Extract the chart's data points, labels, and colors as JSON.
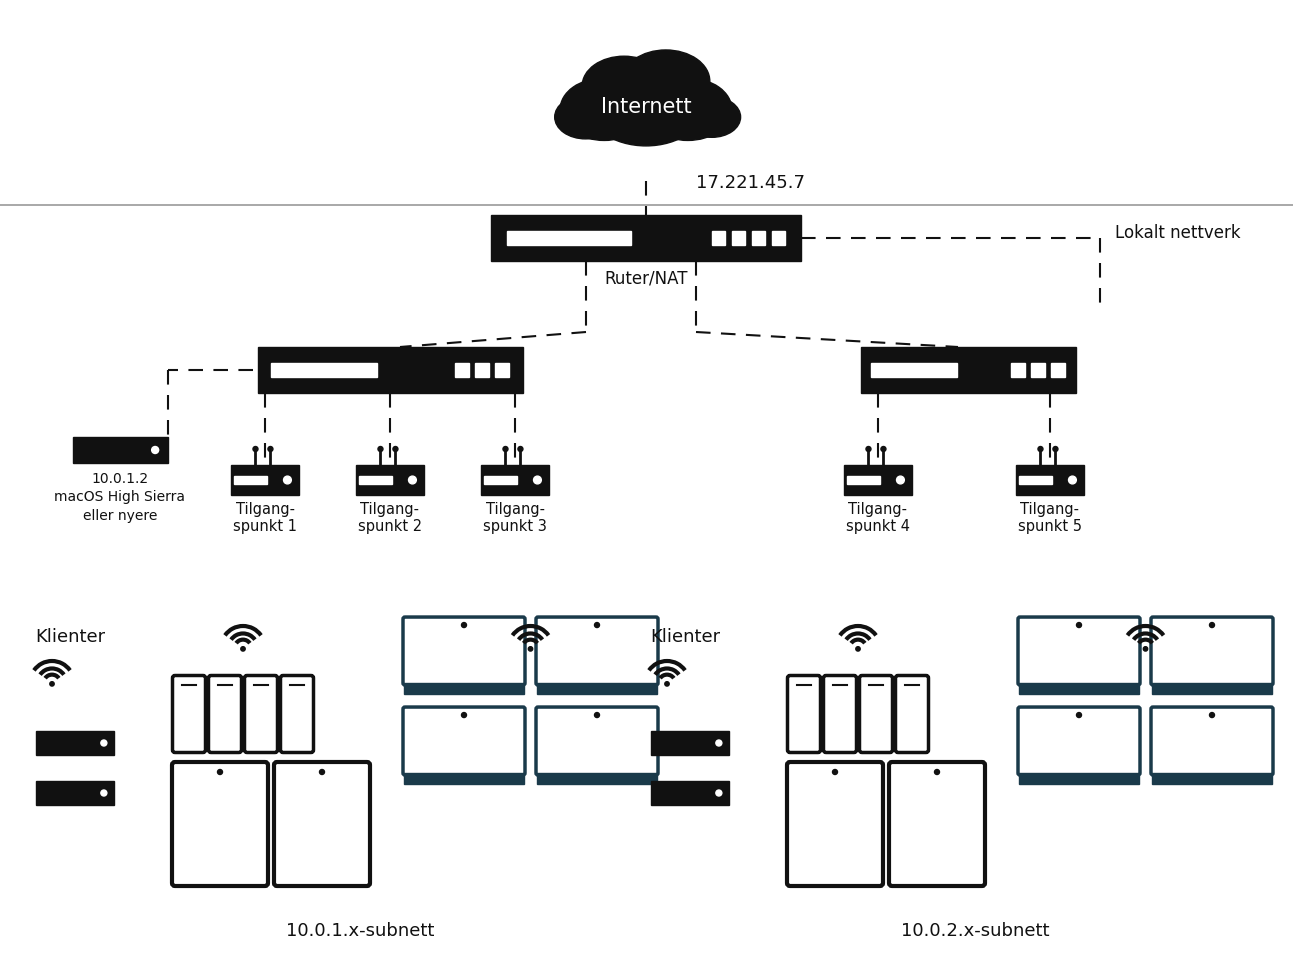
{
  "bg_color": "#ffffff",
  "line_color": "#111111",
  "cloud_text": "Internett",
  "ip_text": "17.221.45.7",
  "router_label": "Ruter/NAT",
  "lokalt_text": "Lokalt nettverk",
  "mac_label": "10.0.1.2\nmacOS High Sierra\neller nyere",
  "access_points": [
    "Tilgang-\nspunkt 1",
    "Tilgang-\nspunkt 2",
    "Tilgang-\nspunkt 3",
    "Tilgang-\nspunkt 4",
    "Tilgang-\nspunkt 5"
  ],
  "klienter_text": "Klienter",
  "subnet1_text": "10.0.1.x-subnett",
  "subnet2_text": "10.0.2.x-subnett",
  "figsize": [
    12.93,
    9.58
  ],
  "dpi": 100
}
